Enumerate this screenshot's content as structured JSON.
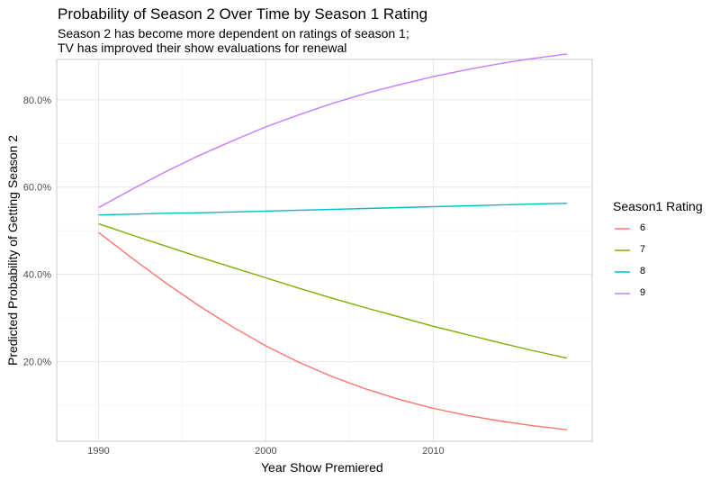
{
  "chart_data": {
    "type": "line",
    "title": "Probability of Season 2 Over Time by Season 1 Rating",
    "subtitle_lines": [
      "Season 2 has become more dependent on ratings of season 1;",
      "TV has improved their show evaluations for renewal"
    ],
    "xlabel": "Year Show Premiered",
    "ylabel": "Predicted Probability of Getting Season 2",
    "xlim": [
      1987.5,
      2019.5
    ],
    "ylim": [
      0.0175,
      0.8925
    ],
    "x_ticks": [
      1990,
      2000,
      2010
    ],
    "y_ticks": [
      0.2,
      0.4,
      0.6,
      0.8
    ],
    "y_tick_labels": [
      "20.0%",
      "40.0%",
      "60.0%",
      "80.0%"
    ],
    "grid": true,
    "legend_title": "Season1 Rating",
    "legend_position": "right",
    "x": [
      1990,
      1992,
      1994,
      1996,
      1998,
      2000,
      2002,
      2004,
      2006,
      2008,
      2010,
      2012,
      2014,
      2016,
      2018
    ],
    "series": [
      {
        "name": "6",
        "color": "#F8766D",
        "values": [
          0.496,
          0.437,
          0.381,
          0.328,
          0.28,
          0.236,
          0.198,
          0.165,
          0.137,
          0.113,
          0.093,
          0.077,
          0.064,
          0.053,
          0.044
        ]
      },
      {
        "name": "7",
        "color": "#7CAE00",
        "values": [
          0.516,
          0.49,
          0.465,
          0.44,
          0.416,
          0.392,
          0.368,
          0.345,
          0.323,
          0.302,
          0.281,
          0.262,
          0.243,
          0.225,
          0.208
        ]
      },
      {
        "name": "8",
        "color": "#00BFC4",
        "values": [
          0.536,
          0.538,
          0.54,
          0.541,
          0.543,
          0.545,
          0.547,
          0.549,
          0.551,
          0.553,
          0.555,
          0.557,
          0.559,
          0.561,
          0.563
        ]
      },
      {
        "name": "9",
        "color": "#C77CFF",
        "values": [
          0.553,
          0.595,
          0.635,
          0.672,
          0.706,
          0.738,
          0.766,
          0.792,
          0.815,
          0.835,
          0.853,
          0.869,
          0.883,
          0.895,
          0.905
        ]
      }
    ]
  }
}
